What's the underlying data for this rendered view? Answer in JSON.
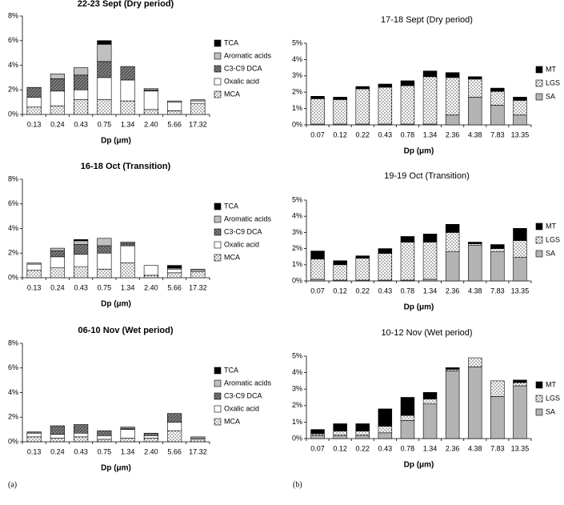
{
  "chart_data": [
    {
      "type": "bar",
      "stacked": true,
      "title": "22-23 Sept (Dry period)",
      "x_label": "Dp (μm)",
      "categories": [
        "0.13",
        "0.24",
        "0.43",
        "0.75",
        "1.34",
        "2.40",
        "5.66",
        "17.32"
      ],
      "series": [
        {
          "name": "MCA",
          "color": "#ffffff",
          "pattern": "dots",
          "values": [
            0.6,
            0.7,
            1.2,
            1.2,
            1.1,
            0.4,
            0.3,
            0.9
          ]
        },
        {
          "name": "Oxalic acid",
          "color": "#ffffff",
          "values": [
            0.8,
            1.2,
            0.8,
            1.8,
            1.7,
            1.5,
            0.7,
            0.2
          ]
        },
        {
          "name": "C3-C9 DCA",
          "color": "#808080",
          "pattern": "hatch",
          "values": [
            0.8,
            1.0,
            1.2,
            1.3,
            1.1,
            0.1,
            0,
            0
          ]
        },
        {
          "name": "Aromatic acids",
          "color": "#c0c0c0",
          "values": [
            0,
            0.4,
            0.6,
            1.4,
            0,
            0.1,
            0.1,
            0.1
          ]
        },
        {
          "name": "TCA",
          "color": "#000000",
          "values": [
            0,
            0,
            0,
            0.3,
            0,
            0,
            0,
            0
          ]
        }
      ],
      "ylim": [
        0,
        8
      ],
      "yticks": [
        {
          "value": 0,
          "label": "0%"
        },
        {
          "value": 2,
          "label": "2%"
        },
        {
          "value": 4,
          "label": "4%"
        },
        {
          "value": 6,
          "label": "6%"
        },
        {
          "value": 8,
          "label": "8%"
        }
      ],
      "legend": "right"
    },
    {
      "type": "bar",
      "stacked": true,
      "title": "16-18 Oct (Transition)",
      "x_label": "Dp (μm)",
      "categories": [
        "0.13",
        "0.24",
        "0.43",
        "0.75",
        "1.34",
        "2.40",
        "5.66",
        "17.32"
      ],
      "series": [
        {
          "name": "MCA",
          "color": "#ffffff",
          "pattern": "dots",
          "values": [
            0.6,
            0.8,
            0.9,
            0.7,
            1.2,
            0.2,
            0.4,
            0.5
          ]
        },
        {
          "name": "Oxalic acid",
          "color": "#ffffff",
          "values": [
            0.5,
            0.9,
            1.0,
            1.3,
            1.4,
            0.8,
            0.3,
            0.1
          ]
        },
        {
          "name": "C3-C9 DCA",
          "color": "#808080",
          "pattern": "hatch",
          "values": [
            0,
            0.5,
            0.8,
            0.6,
            0.2,
            0,
            0.1,
            0
          ]
        },
        {
          "name": "Aromatic acids",
          "color": "#c0c0c0",
          "values": [
            0.1,
            0.2,
            0.3,
            0.6,
            0.1,
            0,
            0,
            0.1
          ]
        },
        {
          "name": "TCA",
          "color": "#000000",
          "values": [
            0,
            0,
            0.1,
            0,
            0,
            0,
            0.2,
            0
          ]
        }
      ],
      "ylim": [
        0,
        8
      ],
      "yticks": [
        {
          "value": 0,
          "label": "0%"
        },
        {
          "value": 2,
          "label": "2%"
        },
        {
          "value": 4,
          "label": "4%"
        },
        {
          "value": 6,
          "label": "6%"
        },
        {
          "value": 8,
          "label": "8%"
        }
      ],
      "legend": "right"
    },
    {
      "type": "bar",
      "stacked": true,
      "title": "06-10 Nov (Wet period)",
      "x_label": "Dp (μm)",
      "categories": [
        "0.13",
        "0.24",
        "0.43",
        "0.75",
        "1.34",
        "2.40",
        "5.66",
        "17.32"
      ],
      "series": [
        {
          "name": "MCA",
          "color": "#ffffff",
          "pattern": "dots",
          "values": [
            0.4,
            0.3,
            0.4,
            0.2,
            0.3,
            0.3,
            0.9,
            0.2
          ]
        },
        {
          "name": "Oxalic acid",
          "color": "#ffffff",
          "values": [
            0.3,
            0.3,
            0.3,
            0.3,
            0.7,
            0.2,
            0.7,
            0.1
          ]
        },
        {
          "name": "C3-C9 DCA",
          "color": "#808080",
          "pattern": "hatch",
          "values": [
            0.1,
            0.7,
            0.7,
            0.4,
            0.1,
            0.2,
            0.7,
            0
          ]
        },
        {
          "name": "Aromatic acids",
          "color": "#c0c0c0",
          "values": [
            0,
            0,
            0,
            0,
            0.1,
            0,
            0,
            0.1
          ]
        },
        {
          "name": "TCA",
          "color": "#000000",
          "values": [
            0,
            0,
            0,
            0,
            0,
            0,
            0,
            0
          ]
        }
      ],
      "ylim": [
        0,
        8
      ],
      "yticks": [
        {
          "value": 0,
          "label": "0%"
        },
        {
          "value": 2,
          "label": "2%"
        },
        {
          "value": 4,
          "label": "4%"
        },
        {
          "value": 6,
          "label": "6%"
        },
        {
          "value": 8,
          "label": "8%"
        }
      ],
      "legend": "right"
    },
    {
      "type": "bar",
      "stacked": true,
      "title": "17-18 Sept (Dry period)",
      "x_label": "Dp (μm)",
      "categories": [
        "0.07",
        "0.12",
        "0.22",
        "0.43",
        "0.78",
        "1.34",
        "2.36",
        "4.38",
        "7.83",
        "13.35"
      ],
      "series": [
        {
          "name": "SA",
          "color": "#b3b3b3",
          "values": [
            0.05,
            0.05,
            0.05,
            0.05,
            0.05,
            0.05,
            0.6,
            1.7,
            1.2,
            0.6
          ]
        },
        {
          "name": "LGS",
          "color": "#ffffff",
          "pattern": "dots",
          "values": [
            1.55,
            1.5,
            2.15,
            2.25,
            2.35,
            2.9,
            2.3,
            1.1,
            0.85,
            0.9
          ]
        },
        {
          "name": "MT",
          "color": "#000000",
          "values": [
            0.15,
            0.15,
            0.15,
            0.2,
            0.3,
            0.35,
            0.3,
            0.15,
            0.2,
            0.2
          ]
        }
      ],
      "ylim": [
        0,
        5
      ],
      "yticks": [
        {
          "value": 0,
          "label": "0%"
        },
        {
          "value": 1,
          "label": "1%"
        },
        {
          "value": 2,
          "label": "2%"
        },
        {
          "value": 3,
          "label": "3%"
        },
        {
          "value": 4,
          "label": "4%"
        },
        {
          "value": 5,
          "label": "5%"
        }
      ],
      "legend": "right"
    },
    {
      "type": "bar",
      "stacked": true,
      "title": "19-19 Oct (Transition)",
      "x_label": "Dp (μm)",
      "categories": [
        "0.07",
        "0.12",
        "0.22",
        "0.43",
        "0.78",
        "1.34",
        "2.36",
        "4.38",
        "7.83",
        "13.35"
      ],
      "series": [
        {
          "name": "SA",
          "color": "#b3b3b3",
          "values": [
            0.1,
            0.05,
            0.05,
            0.05,
            0.05,
            0.1,
            1.8,
            2.2,
            1.8,
            1.45
          ]
        },
        {
          "name": "LGS",
          "color": "#ffffff",
          "pattern": "dots",
          "values": [
            1.25,
            0.95,
            1.35,
            1.65,
            2.35,
            2.3,
            1.2,
            0.1,
            0.2,
            1.05
          ]
        },
        {
          "name": "MT",
          "color": "#000000",
          "values": [
            0.5,
            0.25,
            0.15,
            0.3,
            0.35,
            0.5,
            0.5,
            0.1,
            0.25,
            0.75
          ]
        }
      ],
      "ylim": [
        0,
        5
      ],
      "yticks": [
        {
          "value": 0,
          "label": "0%"
        },
        {
          "value": 1,
          "label": "1%"
        },
        {
          "value": 2,
          "label": "2%"
        },
        {
          "value": 3,
          "label": "3%"
        },
        {
          "value": 4,
          "label": "4%"
        },
        {
          "value": 5,
          "label": "5%"
        }
      ],
      "legend": "right"
    },
    {
      "type": "bar",
      "stacked": true,
      "title": "10-12 Nov (Wet period)",
      "x_label": "Dp (μm)",
      "categories": [
        "0.07",
        "0.12",
        "0.22",
        "0.43",
        "0.78",
        "1.34",
        "2.36",
        "4.38",
        "7.83",
        "13.35"
      ],
      "series": [
        {
          "name": "SA",
          "color": "#b3b3b3",
          "values": [
            0.2,
            0.2,
            0.2,
            0.35,
            1.1,
            2.1,
            4.1,
            4.35,
            2.55,
            3.2
          ]
        },
        {
          "name": "LGS",
          "color": "#ffffff",
          "pattern": "dots",
          "values": [
            0.1,
            0.25,
            0.25,
            0.4,
            0.3,
            0.3,
            0.1,
            0.55,
            0.95,
            0.2
          ]
        },
        {
          "name": "MT",
          "color": "#000000",
          "values": [
            0.25,
            0.45,
            0.45,
            1.05,
            1.1,
            0.4,
            0.1,
            0,
            0,
            0.15
          ]
        }
      ],
      "ylim": [
        0,
        5
      ],
      "yticks": [
        {
          "value": 0,
          "label": "0%"
        },
        {
          "value": 1,
          "label": "1%"
        },
        {
          "value": 2,
          "label": "2%"
        },
        {
          "value": 3,
          "label": "3%"
        },
        {
          "value": 4,
          "label": "4%"
        },
        {
          "value": 5,
          "label": "5%"
        }
      ],
      "legend": "right"
    }
  ],
  "panel_labels": [
    "(a)",
    "(b)"
  ]
}
